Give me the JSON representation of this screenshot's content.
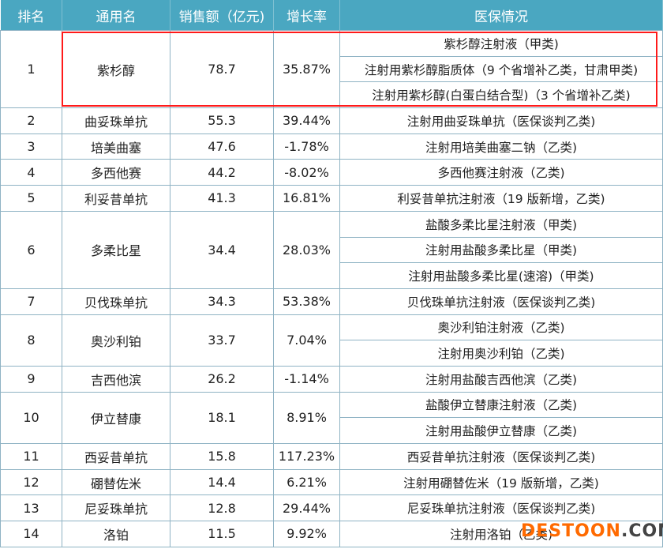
{
  "headers": [
    "排名",
    "通用名",
    "销售额（亿元)",
    "增长率",
    "医保情况"
  ],
  "rows": [
    {
      "rank": "1",
      "name": "紫杉醇",
      "sales": "78.7",
      "growth": "35.87%",
      "insurance": [
        "紫杉醇注射液（甲类)",
        "注射用紫杉醇脂质体（9 个省增补乙类，甘肃甲类)",
        "注射用紫杉醇(白蛋白结合型)（3 个省增补乙类)"
      ],
      "highlighted": true
    },
    {
      "rank": "2",
      "name": "曲妥珠单抗",
      "sales": "55.3",
      "growth": "39.44%",
      "insurance": [
        "注射用曲妥珠单抗（医保谈判乙类)"
      ]
    },
    {
      "rank": "3",
      "name": "培美曲塞",
      "sales": "47.6",
      "growth": "-1.78%",
      "insurance": [
        "注射用培美曲塞二钠（乙类)"
      ]
    },
    {
      "rank": "4",
      "name": "多西他赛",
      "sales": "44.2",
      "growth": "-8.02%",
      "insurance": [
        "多西他赛注射液（乙类)"
      ]
    },
    {
      "rank": "5",
      "name": "利妥昔单抗",
      "sales": "41.3",
      "growth": "16.81%",
      "insurance": [
        "利妥昔单抗注射液（19 版新增，乙类)"
      ]
    },
    {
      "rank": "6",
      "name": "多柔比星",
      "sales": "34.4",
      "growth": "28.03%",
      "insurance": [
        "盐酸多柔比星注射液（甲类)",
        "注射用盐酸多柔比星（甲类)",
        "注射用盐酸多柔比星(速溶)（甲类)"
      ]
    },
    {
      "rank": "7",
      "name": "贝伐珠单抗",
      "sales": "34.3",
      "growth": "53.38%",
      "insurance": [
        "贝伐珠单抗注射液（医保谈判乙类)"
      ]
    },
    {
      "rank": "8",
      "name": "奥沙利铂",
      "sales": "33.7",
      "growth": "7.04%",
      "insurance": [
        "奥沙利铂注射液（乙类)",
        "注射用奥沙利铂（乙类)"
      ]
    },
    {
      "rank": "9",
      "name": "吉西他滨",
      "sales": "26.2",
      "growth": "-1.14%",
      "insurance": [
        "注射用盐酸吉西他滨（乙类)"
      ]
    },
    {
      "rank": "10",
      "name": "伊立替康",
      "sales": "18.1",
      "growth": "8.91%",
      "insurance": [
        "盐酸伊立替康注射液（乙类)",
        "注射用盐酸伊立替康（乙类)"
      ]
    },
    {
      "rank": "11",
      "name": "西妥昔单抗",
      "sales": "15.8",
      "growth": "117.23%",
      "insurance": [
        "西妥昔单抗注射液（医保谈判乙类)"
      ]
    },
    {
      "rank": "12",
      "name": "硼替佐米",
      "sales": "14.4",
      "growth": "6.21%",
      "insurance": [
        "注射用硼替佐米（19 版新增，乙类)"
      ]
    },
    {
      "rank": "13",
      "name": "尼妥珠单抗",
      "sales": "12.8",
      "growth": "29.44%",
      "insurance": [
        "尼妥珠单抗注射液（医保谈判乙类)"
      ]
    },
    {
      "rank": "14",
      "name": "洛铂",
      "sales": "11.5",
      "growth": "9.92%",
      "insurance": [
        "注射用洛铂（乙类)"
      ]
    }
  ],
  "watermark": {
    "part1": "DESTOON",
    "part2": ".COM"
  },
  "colors": {
    "header_bg": "#4aa7c1",
    "highlight": "#ff1a1a",
    "watermark": "#ff6a00"
  }
}
